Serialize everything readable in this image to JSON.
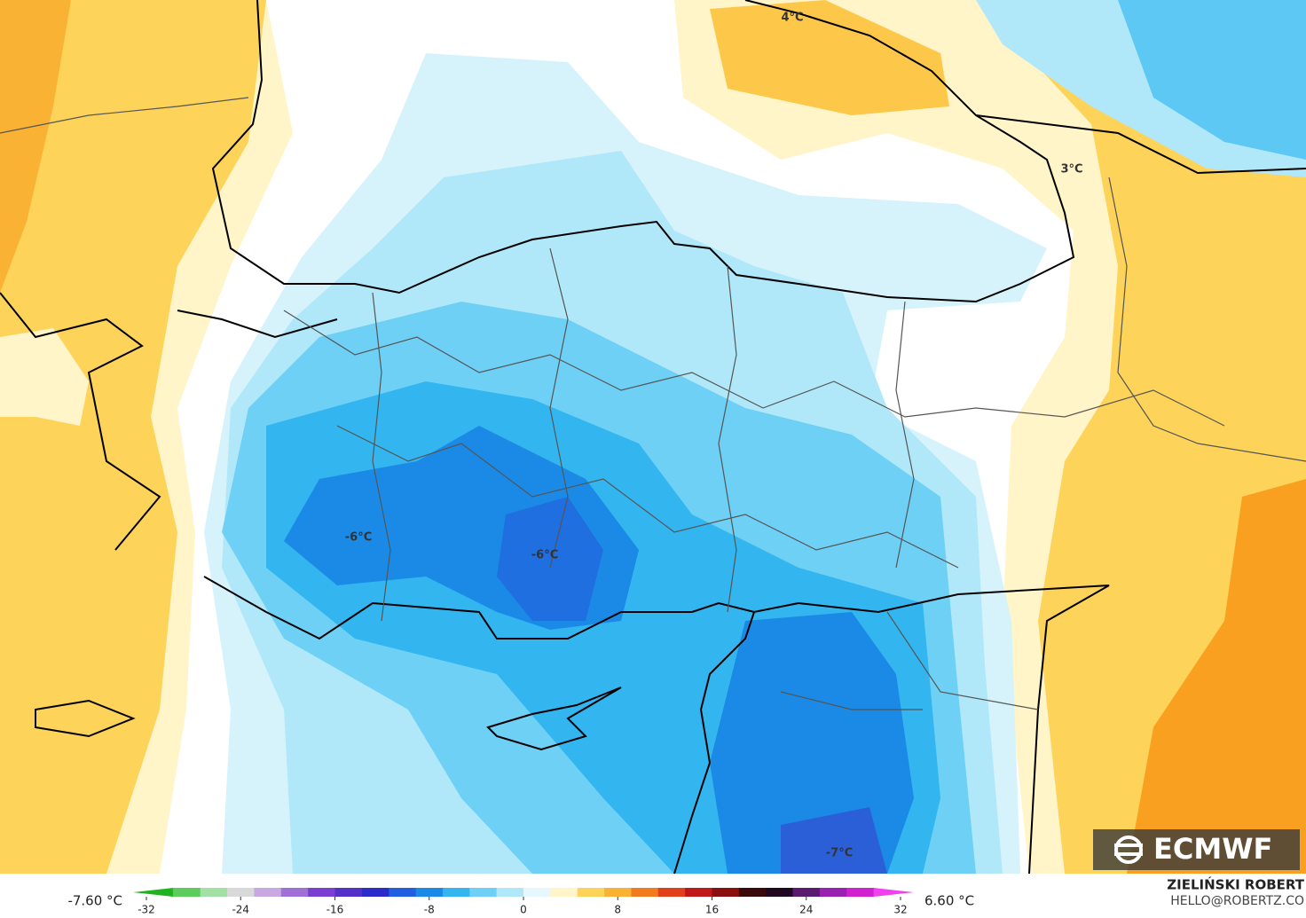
{
  "map": {
    "labels": [
      "4°C",
      "3°C",
      "-6°C",
      "-6°C",
      "-7°C"
    ],
    "logo": "ECMWF",
    "min_label": "-7.60 °C",
    "max_label": "6.60 °C",
    "author": "ZIELIŃSKI ROBERT",
    "contact": "HELLO@ROBERTZ.CO",
    "colorbar": {
      "ticks": [
        -32,
        -24,
        -16,
        -8,
        0,
        8,
        16,
        24,
        32
      ],
      "colors": [
        "#1fb31f",
        "#5ccc5c",
        "#a3e0a3",
        "#d9d9d9",
        "#c7a8e0",
        "#a070d8",
        "#7a3fd0",
        "#5530c8",
        "#2c2cc8",
        "#1f5fe0",
        "#1a8ae6",
        "#33b5f0",
        "#6fd0f5",
        "#b0e8fa",
        "#e6f8fe",
        "#fff5c8",
        "#fdd35a",
        "#f9b233",
        "#f07c1e",
        "#e0401a",
        "#c01818",
        "#8a1010",
        "#3a0a0a",
        "#200820",
        "#5a1a70",
        "#9a20b0",
        "#d020d0",
        "#f040f0"
      ]
    }
  }
}
